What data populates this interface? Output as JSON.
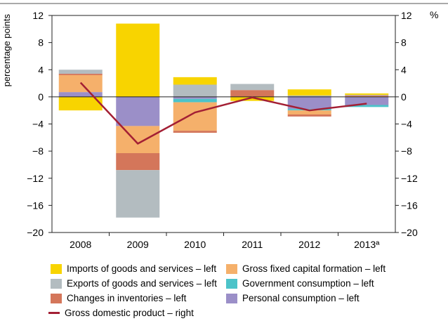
{
  "chart_data": {
    "type": "bar",
    "stacked": true,
    "categories": [
      "2008",
      "2009",
      "2010",
      "2011",
      "2012",
      "2013ª"
    ],
    "ylabel_left": "percentage points",
    "ylabel_right": "%",
    "ylim": [
      -20,
      12
    ],
    "yticks": [
      "12",
      "8",
      "4",
      "0",
      "−4",
      "−8",
      "−12",
      "−16",
      "−20"
    ],
    "grid": false,
    "legend_position": "bottom",
    "series": [
      {
        "key": "pc",
        "name": "Personal consumption – left",
        "color": "#9b8fc8",
        "values": [
          0.7,
          -4.3,
          -0.3,
          0.0,
          -1.8,
          -1.2
        ]
      },
      {
        "key": "gc",
        "name": "Government consumption – left",
        "color": "#4cc3c9",
        "values": [
          0.0,
          0.0,
          -0.5,
          0.0,
          -0.2,
          -0.3
        ]
      },
      {
        "key": "gfcf",
        "name": "Gross fixed capital formation – left",
        "color": "#f5b06b",
        "values": [
          2.5,
          -4.0,
          -4.2,
          0.0,
          -0.6,
          0.1
        ]
      },
      {
        "key": "inv",
        "name": "Changes in inventories – left",
        "color": "#d4765a",
        "values": [
          0.2,
          -2.5,
          -0.3,
          1.0,
          -0.3,
          0.1
        ]
      },
      {
        "key": "exp",
        "name": "Exports of goods and services – left",
        "color": "#b3bcc0",
        "values": [
          0.6,
          -7.0,
          1.8,
          0.9,
          0.2,
          0.1
        ]
      },
      {
        "key": "imp",
        "name": "Imports of goods and services – left",
        "color": "#f8d400",
        "values": [
          -2.0,
          10.8,
          1.1,
          -0.6,
          0.9,
          0.2
        ]
      }
    ],
    "line": {
      "name": "Gross domestic product – right",
      "color": "#a31f34",
      "values": [
        2.1,
        -6.9,
        -2.3,
        -0.1,
        -2.0,
        -1.0
      ]
    }
  },
  "legend": {
    "rows": [
      [
        {
          "key": "imp",
          "label": "Imports of goods and services – left"
        },
        {
          "key": "gfcf",
          "label": "Gross fixed capital formation – left"
        }
      ],
      [
        {
          "key": "exp",
          "label": "Exports of goods and services – left"
        },
        {
          "key": "gc",
          "label": "Government consumption – left"
        }
      ],
      [
        {
          "key": "inv",
          "label": "Changes in inventories – left"
        },
        {
          "key": "pc",
          "label": "Personal consumption – left"
        }
      ],
      [
        {
          "key": "gdp",
          "label": "Gross domestic product – right",
          "is_line": true
        }
      ]
    ]
  }
}
